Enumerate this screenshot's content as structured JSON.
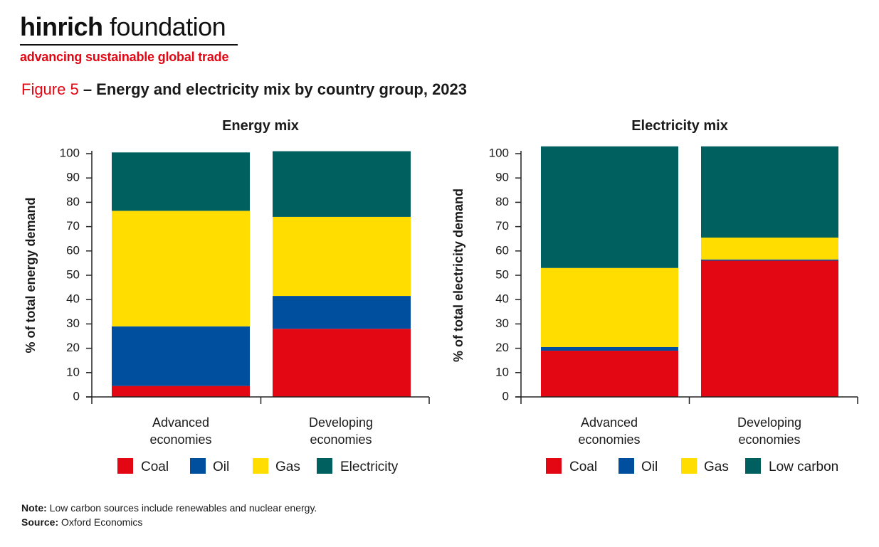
{
  "brand": {
    "name_bold": "hinrich",
    "name_light": " foundation",
    "tagline": "advancing sustainable global trade"
  },
  "figure": {
    "number": "Figure 5",
    "title": " – Energy and electricity mix by country group, 2023"
  },
  "colors": {
    "coal": "#e30613",
    "oil": "#004f9f",
    "gas": "#ffdd00",
    "teal": "#005f5f"
  },
  "chart_data": [
    {
      "type": "bar",
      "stacked": true,
      "title": "Energy mix",
      "ylabel": "% of total energy demand",
      "xlabel": "",
      "ylim": [
        0,
        100
      ],
      "yticks": [
        0,
        10,
        20,
        30,
        40,
        50,
        60,
        70,
        80,
        90,
        100
      ],
      "categories": [
        [
          "Advanced",
          "economies"
        ],
        [
          "Developing",
          "economies"
        ]
      ],
      "series": [
        {
          "name": "Coal",
          "values": [
            4.5,
            28
          ]
        },
        {
          "name": "Oil",
          "values": [
            24.5,
            13.5
          ]
        },
        {
          "name": "Gas",
          "values": [
            47.5,
            32.5
          ]
        },
        {
          "name": "Electricity",
          "values": [
            24,
            27
          ]
        }
      ],
      "legend": "bottom"
    },
    {
      "type": "bar",
      "stacked": true,
      "title": "Electricity mix",
      "ylabel": "% of total electricity demand",
      "xlabel": "",
      "ylim": [
        0,
        100
      ],
      "yticks": [
        0,
        10,
        20,
        30,
        40,
        50,
        60,
        70,
        80,
        90,
        100
      ],
      "categories": [
        [
          "Advanced",
          "economies"
        ],
        [
          "Developing",
          "economies"
        ]
      ],
      "series": [
        {
          "name": "Coal",
          "values": [
            19,
            56
          ]
        },
        {
          "name": "Oil",
          "values": [
            1.5,
            0.5
          ]
        },
        {
          "name": "Gas",
          "values": [
            32.5,
            9
          ]
        },
        {
          "name": "Low carbon",
          "values": [
            50,
            37.5
          ]
        }
      ],
      "legend": "bottom"
    }
  ],
  "notes": {
    "note_label": "Note:",
    "note_text": " Low carbon sources include renewables and nuclear energy.",
    "source_label": "Source:",
    "source_text": " Oxford Economics"
  }
}
